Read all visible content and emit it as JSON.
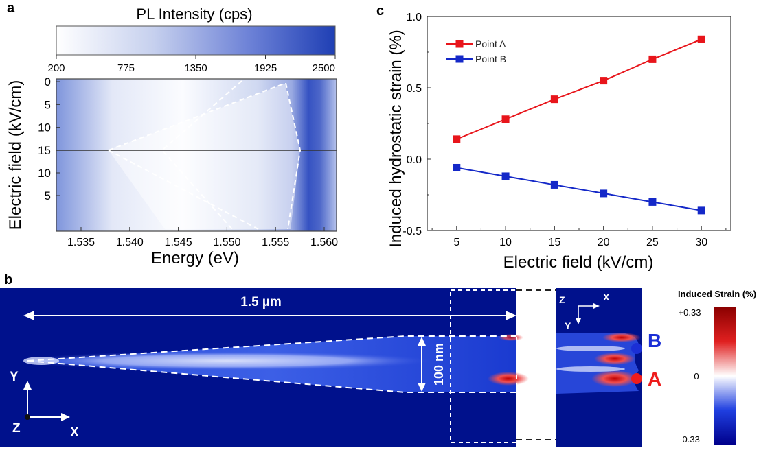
{
  "panel_a": {
    "letter": "a",
    "colorbar": {
      "title": "PL Intensity (cps)",
      "ticks": [
        "200",
        "775",
        "1350",
        "1925",
        "2500"
      ],
      "tick_values": [
        200,
        775,
        1350,
        1925,
        2500
      ],
      "color_low": "#ffffff",
      "color_high": "#1f3fb4"
    },
    "ylabel": "Electric field (kV/cm)",
    "xlabel": "Energy (eV)",
    "yticks_top": [
      "0",
      "5",
      "10",
      "15"
    ],
    "yticks_bottom": [
      "10",
      "5"
    ],
    "xticks": [
      "1.535",
      "1.540",
      "1.545",
      "1.550",
      "1.555",
      "1.560"
    ]
  },
  "panel_b": {
    "letter": "b",
    "length_label": "1.5 µm",
    "width_label": "100 nm",
    "axes_left": {
      "y": "Y",
      "z": "Z",
      "x": "X"
    },
    "axes_right": {
      "z": "Z",
      "x": "X",
      "y": "Y"
    },
    "point_b_label": "B",
    "point_a_label": "A",
    "colorbar": {
      "title": "Induced Strain (%)",
      "max_label": "+0.33",
      "mid_label": "0",
      "min_label": "-0.33",
      "color_max": "#8b0000",
      "color_mid": "#ffffff",
      "color_min": "#00008b"
    }
  },
  "chart_data": {
    "type": "line",
    "panel_letter": "c",
    "xlabel": "Electric field (kV/cm)",
    "ylabel": "Induced hydrostatic strain (%)",
    "xlim": [
      2,
      33
    ],
    "ylim": [
      -0.5,
      1.0
    ],
    "xticks": [
      "5",
      "10",
      "15",
      "20",
      "25",
      "30"
    ],
    "yticks": [
      "-0.5",
      "0.0",
      "0.5",
      "1.0"
    ],
    "x": [
      5,
      10,
      15,
      20,
      25,
      30
    ],
    "series": [
      {
        "name": "Point A",
        "color": "#e8151b",
        "values": [
          0.14,
          0.28,
          0.42,
          0.55,
          0.7,
          0.84
        ]
      },
      {
        "name": "Point B",
        "color": "#1428c8",
        "values": [
          -0.06,
          -0.12,
          -0.18,
          -0.24,
          -0.3,
          -0.36
        ]
      }
    ],
    "legend": "top-left",
    "grid": false
  }
}
